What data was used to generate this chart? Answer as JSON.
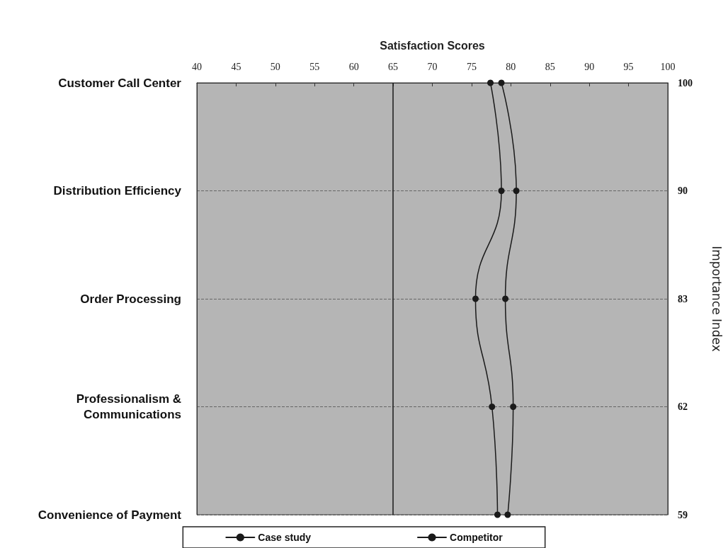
{
  "chart_data": {
    "type": "line",
    "orientation": "horizontal",
    "xlabel": "Satisfaction Scores",
    "y2label": "Importance Index",
    "categories": [
      "Customer Call Center",
      "Distribution Efficiency",
      "Order Processing",
      "Professionalism &\nCommunications",
      "Convenience of Payment"
    ],
    "series": [
      {
        "name": "Case study",
        "color": "#1a1a1a",
        "values": [
          77.4,
          78.8,
          75.5,
          77.6,
          78.3
        ]
      },
      {
        "name": "Competitor",
        "color": "#1a1a1a",
        "values": [
          78.8,
          80.7,
          79.3,
          80.3,
          79.6
        ]
      }
    ],
    "xlim": [
      40,
      100
    ],
    "xticks": [
      40,
      45,
      50,
      55,
      60,
      65,
      70,
      75,
      80,
      85,
      90,
      95,
      100
    ],
    "ref_lines": [
      {
        "axis": "x",
        "value": 65,
        "color": "#1a1a1a"
      }
    ],
    "annotations": [
      "100",
      "90",
      "83",
      "62",
      "59"
    ],
    "grid": "y",
    "legend": "bottom",
    "marker": "circle",
    "line_style": "solid"
  }
}
